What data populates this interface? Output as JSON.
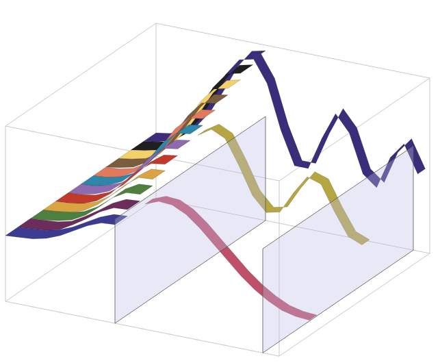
{
  "chart_data": {
    "type": "ribbon3d",
    "tick_labels": false,
    "xlim": [
      0,
      10
    ],
    "ylim": [
      -0.6,
      1
    ],
    "zlim": [
      0,
      1
    ],
    "planes": [
      {
        "x": 4,
        "ylim": [
          -0.6,
          0.35
        ]
      },
      {
        "x": 9.4,
        "ylim": [
          -0.6,
          0.35
        ]
      }
    ],
    "series": [
      {
        "type": "surface",
        "depth": 0,
        "color": "#3b3b8f",
        "x": [
          0,
          0.5,
          1,
          1.5,
          2,
          2.5,
          3,
          3.5,
          4
        ],
        "values": [
          0,
          0.01,
          0.02,
          0.05,
          0.1,
          0.17,
          0.24,
          0.29,
          0.3
        ]
      },
      {
        "type": "surface",
        "depth": 0.083,
        "color": "#6b2d5c",
        "x": [
          0,
          0.5,
          1,
          1.5,
          2,
          2.5,
          3,
          3.5,
          4
        ],
        "values": [
          0,
          0.01,
          0.02,
          0.05,
          0.12,
          0.2,
          0.29,
          0.35,
          0.36
        ]
      },
      {
        "type": "surface",
        "depth": 0.167,
        "color": "#4f7f3f",
        "x": [
          0,
          0.5,
          1,
          1.5,
          2,
          2.5,
          3,
          3.5,
          4
        ],
        "values": [
          0,
          0.01,
          0.03,
          0.06,
          0.13,
          0.23,
          0.34,
          0.41,
          0.42
        ]
      },
      {
        "type": "surface",
        "depth": 0.25,
        "color": "#d9a441",
        "x": [
          0,
          0.5,
          1,
          1.5,
          2,
          2.5,
          3,
          3.5,
          4
        ],
        "values": [
          0,
          0.01,
          0.03,
          0.07,
          0.15,
          0.26,
          0.38,
          0.47,
          0.48
        ]
      },
      {
        "type": "surface",
        "depth": 0.333,
        "color": "#c0392b",
        "x": [
          0,
          0.5,
          1,
          1.5,
          2,
          2.5,
          3,
          3.5,
          4
        ],
        "values": [
          0,
          0.01,
          0.03,
          0.08,
          0.17,
          0.3,
          0.43,
          0.52,
          0.54
        ]
      },
      {
        "type": "surface",
        "depth": 0.417,
        "color": "#8e6bb0",
        "x": [
          0,
          0.5,
          1,
          1.5,
          2,
          2.5,
          3,
          3.5,
          4
        ],
        "values": [
          0,
          0.01,
          0.04,
          0.09,
          0.19,
          0.33,
          0.48,
          0.58,
          0.6
        ]
      },
      {
        "type": "surface",
        "depth": 0.5,
        "color": "#2e86ab",
        "x": [
          0,
          0.5,
          1,
          1.5,
          2,
          2.5,
          3,
          3.5,
          4
        ],
        "values": [
          0,
          0.01,
          0.04,
          0.1,
          0.21,
          0.36,
          0.53,
          0.64,
          0.66
        ]
      },
      {
        "type": "surface",
        "depth": 0.583,
        "color": "#e07a5f",
        "x": [
          0,
          0.5,
          1,
          1.5,
          2,
          2.5,
          3,
          3.5,
          4
        ],
        "values": [
          0,
          0.01,
          0.04,
          0.11,
          0.23,
          0.4,
          0.58,
          0.7,
          0.72
        ]
      },
      {
        "type": "surface",
        "depth": 0.667,
        "color": "#7a5c3e",
        "x": [
          0,
          0.5,
          1,
          1.5,
          2,
          2.5,
          3,
          3.5,
          4
        ],
        "values": [
          0,
          0.02,
          0.05,
          0.12,
          0.25,
          0.43,
          0.62,
          0.76,
          0.78
        ]
      },
      {
        "type": "surface",
        "depth": 0.75,
        "color": "#f2d16b",
        "x": [
          0,
          0.5,
          1,
          1.5,
          2,
          2.5,
          3,
          3.5,
          4
        ],
        "values": [
          0,
          0.02,
          0.05,
          0.13,
          0.27,
          0.46,
          0.67,
          0.81,
          0.84
        ]
      },
      {
        "type": "surface",
        "depth": 0.833,
        "color": "#1f1f1f",
        "x": [
          0,
          0.5,
          1,
          1.5,
          2,
          2.5,
          3,
          3.5,
          4
        ],
        "values": [
          0,
          0.02,
          0.05,
          0.14,
          0.29,
          0.5,
          0.72,
          0.87,
          0.9
        ]
      },
      {
        "type": "surface",
        "depth": 0.917,
        "color": "#3d2c7a",
        "x": [
          0,
          0.5,
          1,
          1.5,
          2,
          2.5,
          3,
          3.5,
          4
        ],
        "values": [
          0,
          0.02,
          0.06,
          0.14,
          0.3,
          0.52,
          0.76,
          0.92,
          0.95
        ]
      },
      {
        "type": "ribbon",
        "depth": 0.92,
        "color": "#3a2d7a",
        "x": [
          4,
          4.5,
          5,
          5.5,
          6,
          6.5,
          7,
          7.5,
          8,
          8.5,
          9,
          9.5,
          10
        ],
        "values": [
          0.95,
          0.75,
          0.35,
          0.05,
          0.05,
          0.35,
          0.6,
          0.45,
          0.1,
          0,
          0.3,
          0.45,
          0.2
        ]
      },
      {
        "type": "ribbon",
        "depth": 0.55,
        "color": "#b5a642",
        "x": [
          4,
          4.5,
          5,
          5.5,
          6,
          6.5,
          7,
          7.5,
          8,
          8.5,
          9,
          9.5,
          10
        ],
        "values": [
          0.6,
          0.68,
          0.62,
          0.4,
          0.15,
          0.02,
          0.05,
          0.25,
          0.42,
          0.38,
          0.15,
          -0.05,
          -0.1
        ]
      },
      {
        "type": "ribbon",
        "depth": 0.2,
        "color": "#c0506a",
        "x": [
          4,
          4.5,
          5,
          5.5,
          6,
          6.5,
          7,
          7.5,
          8,
          8.5,
          9,
          9.5,
          10
        ],
        "values": [
          0.3,
          0.35,
          0.34,
          0.28,
          0.18,
          0.06,
          -0.06,
          -0.18,
          -0.28,
          -0.36,
          -0.42,
          -0.45,
          -0.46
        ]
      }
    ]
  }
}
